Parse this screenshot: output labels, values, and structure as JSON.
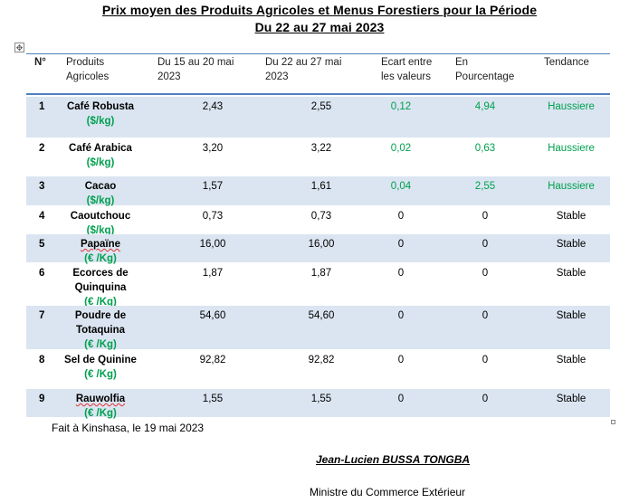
{
  "title_line1": "Prix moyen des Produits Agricoles et Menus Forestiers pour la Période",
  "title_line2": "Du 22 au 27 mai 2023",
  "headers": {
    "n": "N°",
    "prod1": "Produits",
    "prod2": "Agricoles",
    "p1a": "Du 15 au 20 mai",
    "p1b": "2023",
    "p2a": "Du 22 au 27 mai",
    "p2b": "2023",
    "ecart1": "Ecart entre",
    "ecart2": "les valeurs",
    "pct1": "En",
    "pct2": "Pourcentage",
    "tend": "Tendance"
  },
  "rows": [
    {
      "n": "1",
      "name1": "Café Robusta",
      "name2": "",
      "unit": "($/kg)",
      "v1": "2,43",
      "v2": "2,55",
      "ecart": "0,12",
      "pct": "4,94",
      "trend": "Haussiere"
    },
    {
      "n": "2",
      "name1": "Café Arabica",
      "name2": "",
      "unit": "($/kg)",
      "v1": "3,20",
      "v2": "3,22",
      "ecart": "0,02",
      "pct": "0,63",
      "trend": "Haussiere"
    },
    {
      "n": "3",
      "name1": "Cacao",
      "name2": "",
      "unit": "($/kg)",
      "v1": "1,57",
      "v2": "1,61",
      "ecart": "0,04",
      "pct": "2,55",
      "trend": "Haussiere"
    },
    {
      "n": "4",
      "name1": "Caoutchouc",
      "name2": "",
      "unit": "($/kg)",
      "v1": "0,73",
      "v2": "0,73",
      "ecart": "0",
      "pct": "0",
      "trend": "Stable"
    },
    {
      "n": "5",
      "name1": "Papaïne",
      "name2": "",
      "unit": "(€ /Kg)",
      "v1": "16,00",
      "v2": "16,00",
      "ecart": "0",
      "pct": "0",
      "trend": "Stable"
    },
    {
      "n": "6",
      "name1": "Ecorces de",
      "name2": "Quinquina",
      "unit": "(€ /Kg)",
      "v1": "1,87",
      "v2": "1,87",
      "ecart": "0",
      "pct": "0",
      "trend": "Stable"
    },
    {
      "n": "7",
      "name1": "Poudre de",
      "name2": "Totaquina",
      "unit": "(€ /Kg)",
      "v1": "54,60",
      "v2": "54,60",
      "ecart": "0",
      "pct": "0",
      "trend": "Stable"
    },
    {
      "n": "8",
      "name1": "Sel de Quinine",
      "name2": "",
      "unit": "(€ /Kg)",
      "v1": "92,82",
      "v2": "92,82",
      "ecart": "0",
      "pct": "0",
      "trend": "Stable"
    },
    {
      "n": "9",
      "name1": "Rauwolfia",
      "name2": "",
      "unit": "(€ /Kg)",
      "v1": "1,55",
      "v2": "1,55",
      "ecart": "0",
      "pct": "0",
      "trend": "Stable"
    }
  ],
  "footer": {
    "place_date": "Fait à Kinshasa, le 19 mai 2023",
    "signatory": "Jean-Lucien BUSSA TONGBA",
    "role": "Ministre du Commerce Extérieur"
  },
  "colors": {
    "band": "#dbe5f1",
    "rule": "#4f81bd",
    "rise": "#00a04f"
  }
}
